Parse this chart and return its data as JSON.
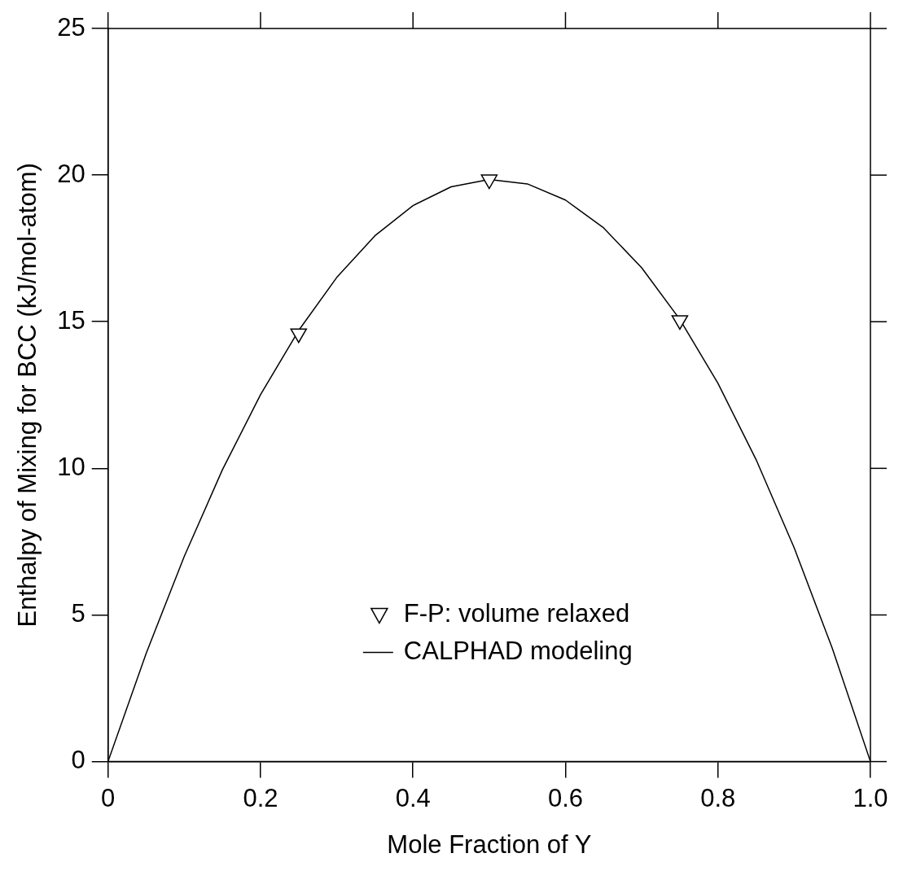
{
  "chart_data": {
    "type": "line",
    "xlabel": "Mole Fraction of Y",
    "ylabel": "Enthalpy of Mixing for BCC (kJ/mol-atom)",
    "xlim": [
      0,
      1
    ],
    "ylim": [
      0,
      25
    ],
    "xticks": [
      0,
      0.2,
      0.4,
      0.6,
      0.8,
      {
        "value": 1,
        "label": "1.0"
      }
    ],
    "yticks": [
      0,
      5,
      10,
      15,
      20,
      25
    ],
    "grid": false,
    "legend": "bottom",
    "series": [
      {
        "name": "F-P: volume relaxed",
        "type": "scatter",
        "marker": "triangle",
        "color": "#000000",
        "x": [
          0.25,
          0.5,
          0.75
        ],
        "values": [
          14.6,
          19.85,
          15.05
        ]
      },
      {
        "name": "CALPHAD modeling",
        "type": "line",
        "marker": "none",
        "line_style": "solid",
        "color": "#000000",
        "x": [
          0,
          0.05,
          0.1,
          0.15,
          0.2,
          0.25,
          0.3,
          0.35,
          0.4,
          0.45,
          0.5,
          0.55,
          0.6,
          0.65,
          0.7,
          0.75,
          0.8,
          0.85,
          0.9,
          0.95,
          1
        ],
        "values": [
          0,
          3.69,
          7.0,
          9.95,
          12.51,
          14.7,
          16.51,
          17.93,
          18.96,
          19.6,
          19.85,
          19.7,
          19.15,
          18.2,
          16.84,
          15.08,
          12.9,
          10.3,
          7.29,
          3.86,
          0
        ]
      }
    ]
  }
}
